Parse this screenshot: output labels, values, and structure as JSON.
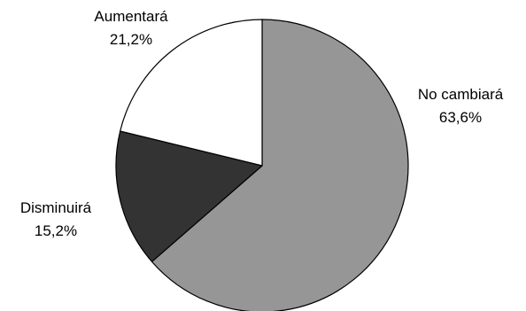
{
  "chart_data": {
    "type": "pie",
    "start": "top",
    "direction": "clockwise",
    "slices": [
      {
        "label": "No cambiará",
        "value": 63.6,
        "value_text": "63,6%",
        "color": "#969696"
      },
      {
        "label": "Disminuirá",
        "value": 15.2,
        "value_text": "15,2%",
        "color": "#333333"
      },
      {
        "label": "Aumentará",
        "value": 21.2,
        "value_text": "21,2%",
        "color": "#ffffff"
      }
    ],
    "edge_color": "#000000"
  }
}
